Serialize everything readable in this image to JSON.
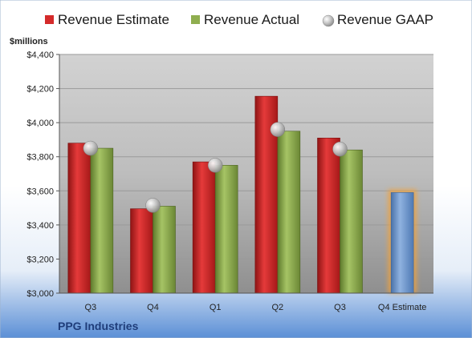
{
  "chart_data": {
    "type": "bar",
    "company": "PPG Industries",
    "y_unit_label": "$millions",
    "categories": [
      "Q3",
      "Q4",
      "Q1",
      "Q2",
      "Q3",
      "Q4 Estimate"
    ],
    "series": [
      {
        "name": "Revenue Estimate",
        "kind": "bar",
        "color": "#d42a2a",
        "values": [
          3880,
          3495,
          3770,
          4155,
          3910,
          null
        ]
      },
      {
        "name": "Revenue Actual",
        "kind": "bar",
        "color": "#8fae4f",
        "values": [
          3850,
          3510,
          3750,
          3950,
          3840,
          null
        ]
      },
      {
        "name": "Revenue GAAP",
        "kind": "marker",
        "color": "#b8b8b8",
        "values": [
          3850,
          3515,
          3750,
          3960,
          3845,
          null
        ]
      }
    ],
    "forecast": {
      "category": "Q4 Estimate",
      "value": 3590,
      "color": "#6d96cc",
      "glow": "#f2a23a"
    },
    "yticks": [
      3000,
      3200,
      3400,
      3600,
      3800,
      4000,
      4200,
      4400
    ],
    "ytick_labels": [
      "$3,000",
      "$3,200",
      "$3,400",
      "$3,600",
      "$3,800",
      "$4,000",
      "$4,200",
      "$4,400"
    ],
    "ylim": [
      3000,
      4400
    ],
    "grid": true,
    "legend_position": "top"
  }
}
